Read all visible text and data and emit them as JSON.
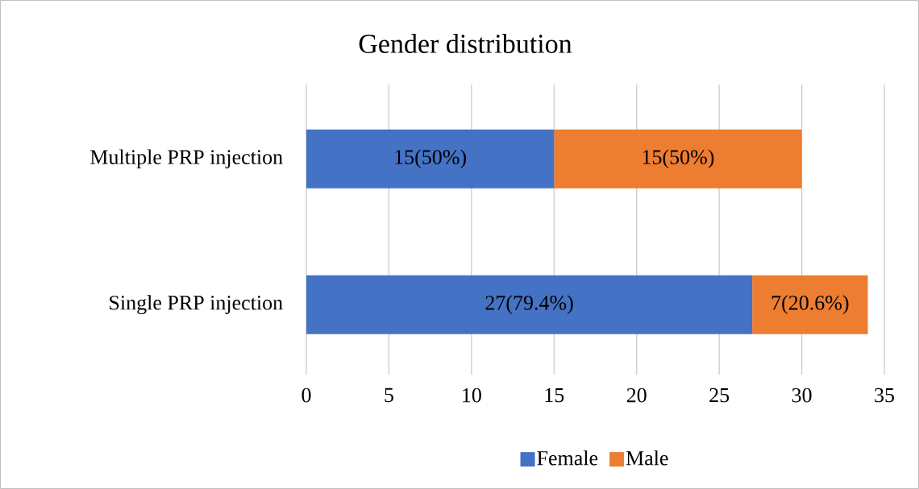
{
  "chart_data": {
    "type": "bar",
    "orientation": "horizontal",
    "stacked": true,
    "title": "Gender distribution",
    "categories": [
      "Multiple PRP injection",
      "Single PRP injection"
    ],
    "series": [
      {
        "name": "Female",
        "color": "#4472c4",
        "values": [
          15,
          27
        ],
        "value_labels": [
          "15(50%)",
          "27(79.4%)"
        ]
      },
      {
        "name": "Male",
        "color": "#ed7d31",
        "values": [
          15,
          7
        ],
        "value_labels": [
          "15(50%)",
          "7(20.6%)"
        ]
      }
    ],
    "xlim": [
      0,
      35
    ],
    "xticks": [
      0,
      5,
      10,
      15,
      20,
      25,
      30,
      35
    ],
    "grid": "x",
    "legend": "bottom"
  }
}
